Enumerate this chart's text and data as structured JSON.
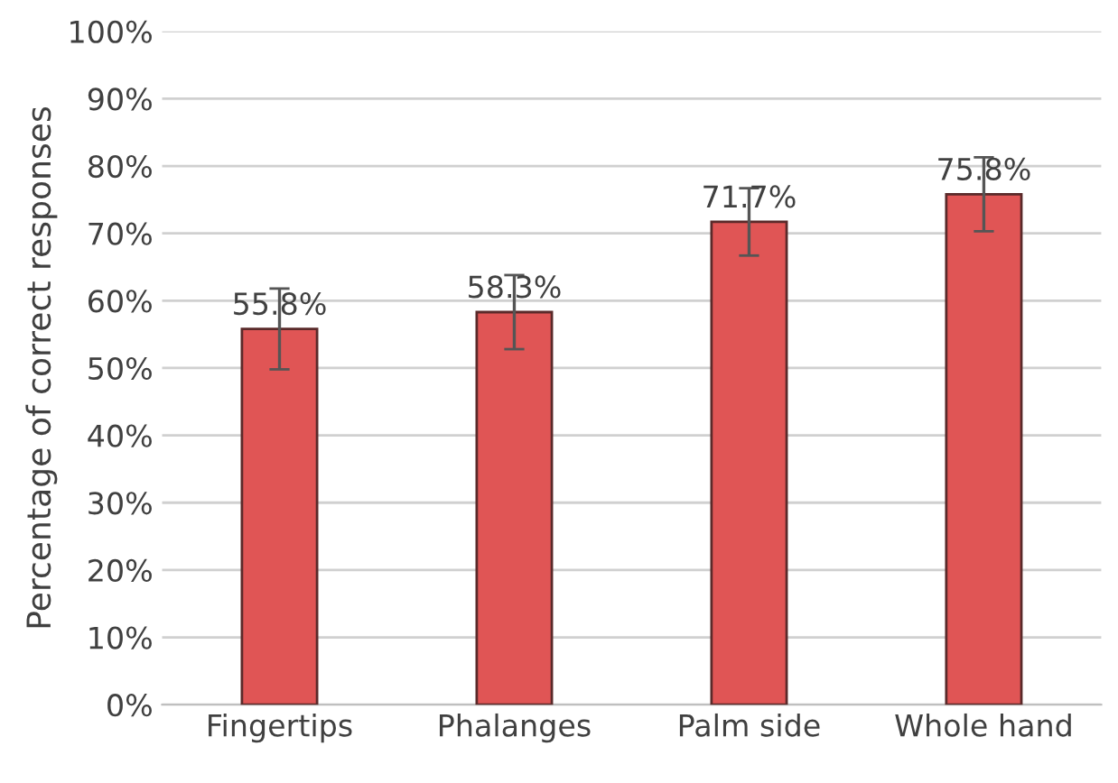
{
  "chart_data": {
    "type": "bar",
    "ylabel": "Percentage of correct responses",
    "categories": [
      "Fingertips",
      "Phalanges",
      "Palm side",
      "Whole hand"
    ],
    "values": [
      55.8,
      58.3,
      71.7,
      75.8
    ],
    "value_labels": [
      "55.8%",
      "58.3%",
      "71.7%",
      "75.8%"
    ],
    "errors": [
      6,
      5.5,
      5,
      5.5
    ],
    "color": "#e05555",
    "ylim": [
      0,
      100
    ],
    "yticks": [
      {
        "value": 0,
        "label": "0%"
      },
      {
        "value": 10,
        "label": "10%"
      },
      {
        "value": 20,
        "label": "20%"
      },
      {
        "value": 30,
        "label": "30%"
      },
      {
        "value": 40,
        "label": "40%"
      },
      {
        "value": 50,
        "label": "50%"
      },
      {
        "value": 60,
        "label": "60%"
      },
      {
        "value": 70,
        "label": "70%"
      },
      {
        "value": 80,
        "label": "80%"
      },
      {
        "value": 90,
        "label": "90%"
      },
      {
        "value": 100,
        "label": "100%"
      }
    ],
    "grid": "y"
  }
}
